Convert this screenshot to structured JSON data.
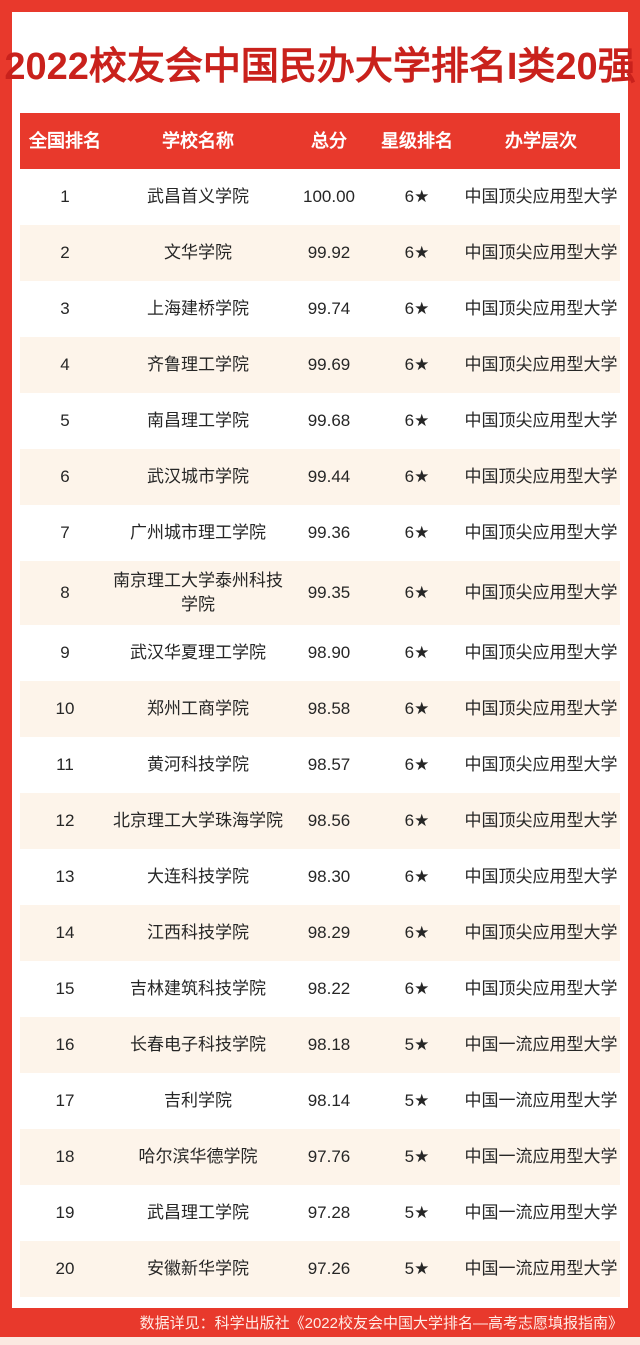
{
  "title": "2022校友会中国民办大学排名I类20强",
  "colors": {
    "background_red": "#e8392c",
    "header_red": "#e8392c",
    "title_red": "#c9211c",
    "row_alt": "#fdf4ea",
    "text_dark": "#262626",
    "footer_text": "#ffece6",
    "bottom_strip": "#fbe9e1"
  },
  "chart_data": {
    "type": "table",
    "title": "2022校友会中国民办大学排名I类20强",
    "columns": [
      "全国排名",
      "学校名称",
      "总分",
      "星级排名",
      "办学层次"
    ],
    "rows": [
      [
        "1",
        "武昌首义学院",
        "100.00",
        "6★",
        "中国顶尖应用型大学"
      ],
      [
        "2",
        "文华学院",
        "99.92",
        "6★",
        "中国顶尖应用型大学"
      ],
      [
        "3",
        "上海建桥学院",
        "99.74",
        "6★",
        "中国顶尖应用型大学"
      ],
      [
        "4",
        "齐鲁理工学院",
        "99.69",
        "6★",
        "中国顶尖应用型大学"
      ],
      [
        "5",
        "南昌理工学院",
        "99.68",
        "6★",
        "中国顶尖应用型大学"
      ],
      [
        "6",
        "武汉城市学院",
        "99.44",
        "6★",
        "中国顶尖应用型大学"
      ],
      [
        "7",
        "广州城市理工学院",
        "99.36",
        "6★",
        "中国顶尖应用型大学"
      ],
      [
        "8",
        "南京理工大学泰州科技学院",
        "99.35",
        "6★",
        "中国顶尖应用型大学"
      ],
      [
        "9",
        "武汉华夏理工学院",
        "98.90",
        "6★",
        "中国顶尖应用型大学"
      ],
      [
        "10",
        "郑州工商学院",
        "98.58",
        "6★",
        "中国顶尖应用型大学"
      ],
      [
        "11",
        "黄河科技学院",
        "98.57",
        "6★",
        "中国顶尖应用型大学"
      ],
      [
        "12",
        "北京理工大学珠海学院",
        "98.56",
        "6★",
        "中国顶尖应用型大学"
      ],
      [
        "13",
        "大连科技学院",
        "98.30",
        "6★",
        "中国顶尖应用型大学"
      ],
      [
        "14",
        "江西科技学院",
        "98.29",
        "6★",
        "中国顶尖应用型大学"
      ],
      [
        "15",
        "吉林建筑科技学院",
        "98.22",
        "6★",
        "中国顶尖应用型大学"
      ],
      [
        "16",
        "长春电子科技学院",
        "98.18",
        "5★",
        "中国一流应用型大学"
      ],
      [
        "17",
        "吉利学院",
        "98.14",
        "5★",
        "中国一流应用型大学"
      ],
      [
        "18",
        "哈尔滨华德学院",
        "97.76",
        "5★",
        "中国一流应用型大学"
      ],
      [
        "19",
        "武昌理工学院",
        "97.28",
        "5★",
        "中国一流应用型大学"
      ],
      [
        "20",
        "安徽新华学院",
        "97.26",
        "5★",
        "中国一流应用型大学"
      ]
    ]
  },
  "footer": {
    "note": "数据详见：科学出版社《2022校友会中国大学排名—高考志愿填报指南》"
  }
}
